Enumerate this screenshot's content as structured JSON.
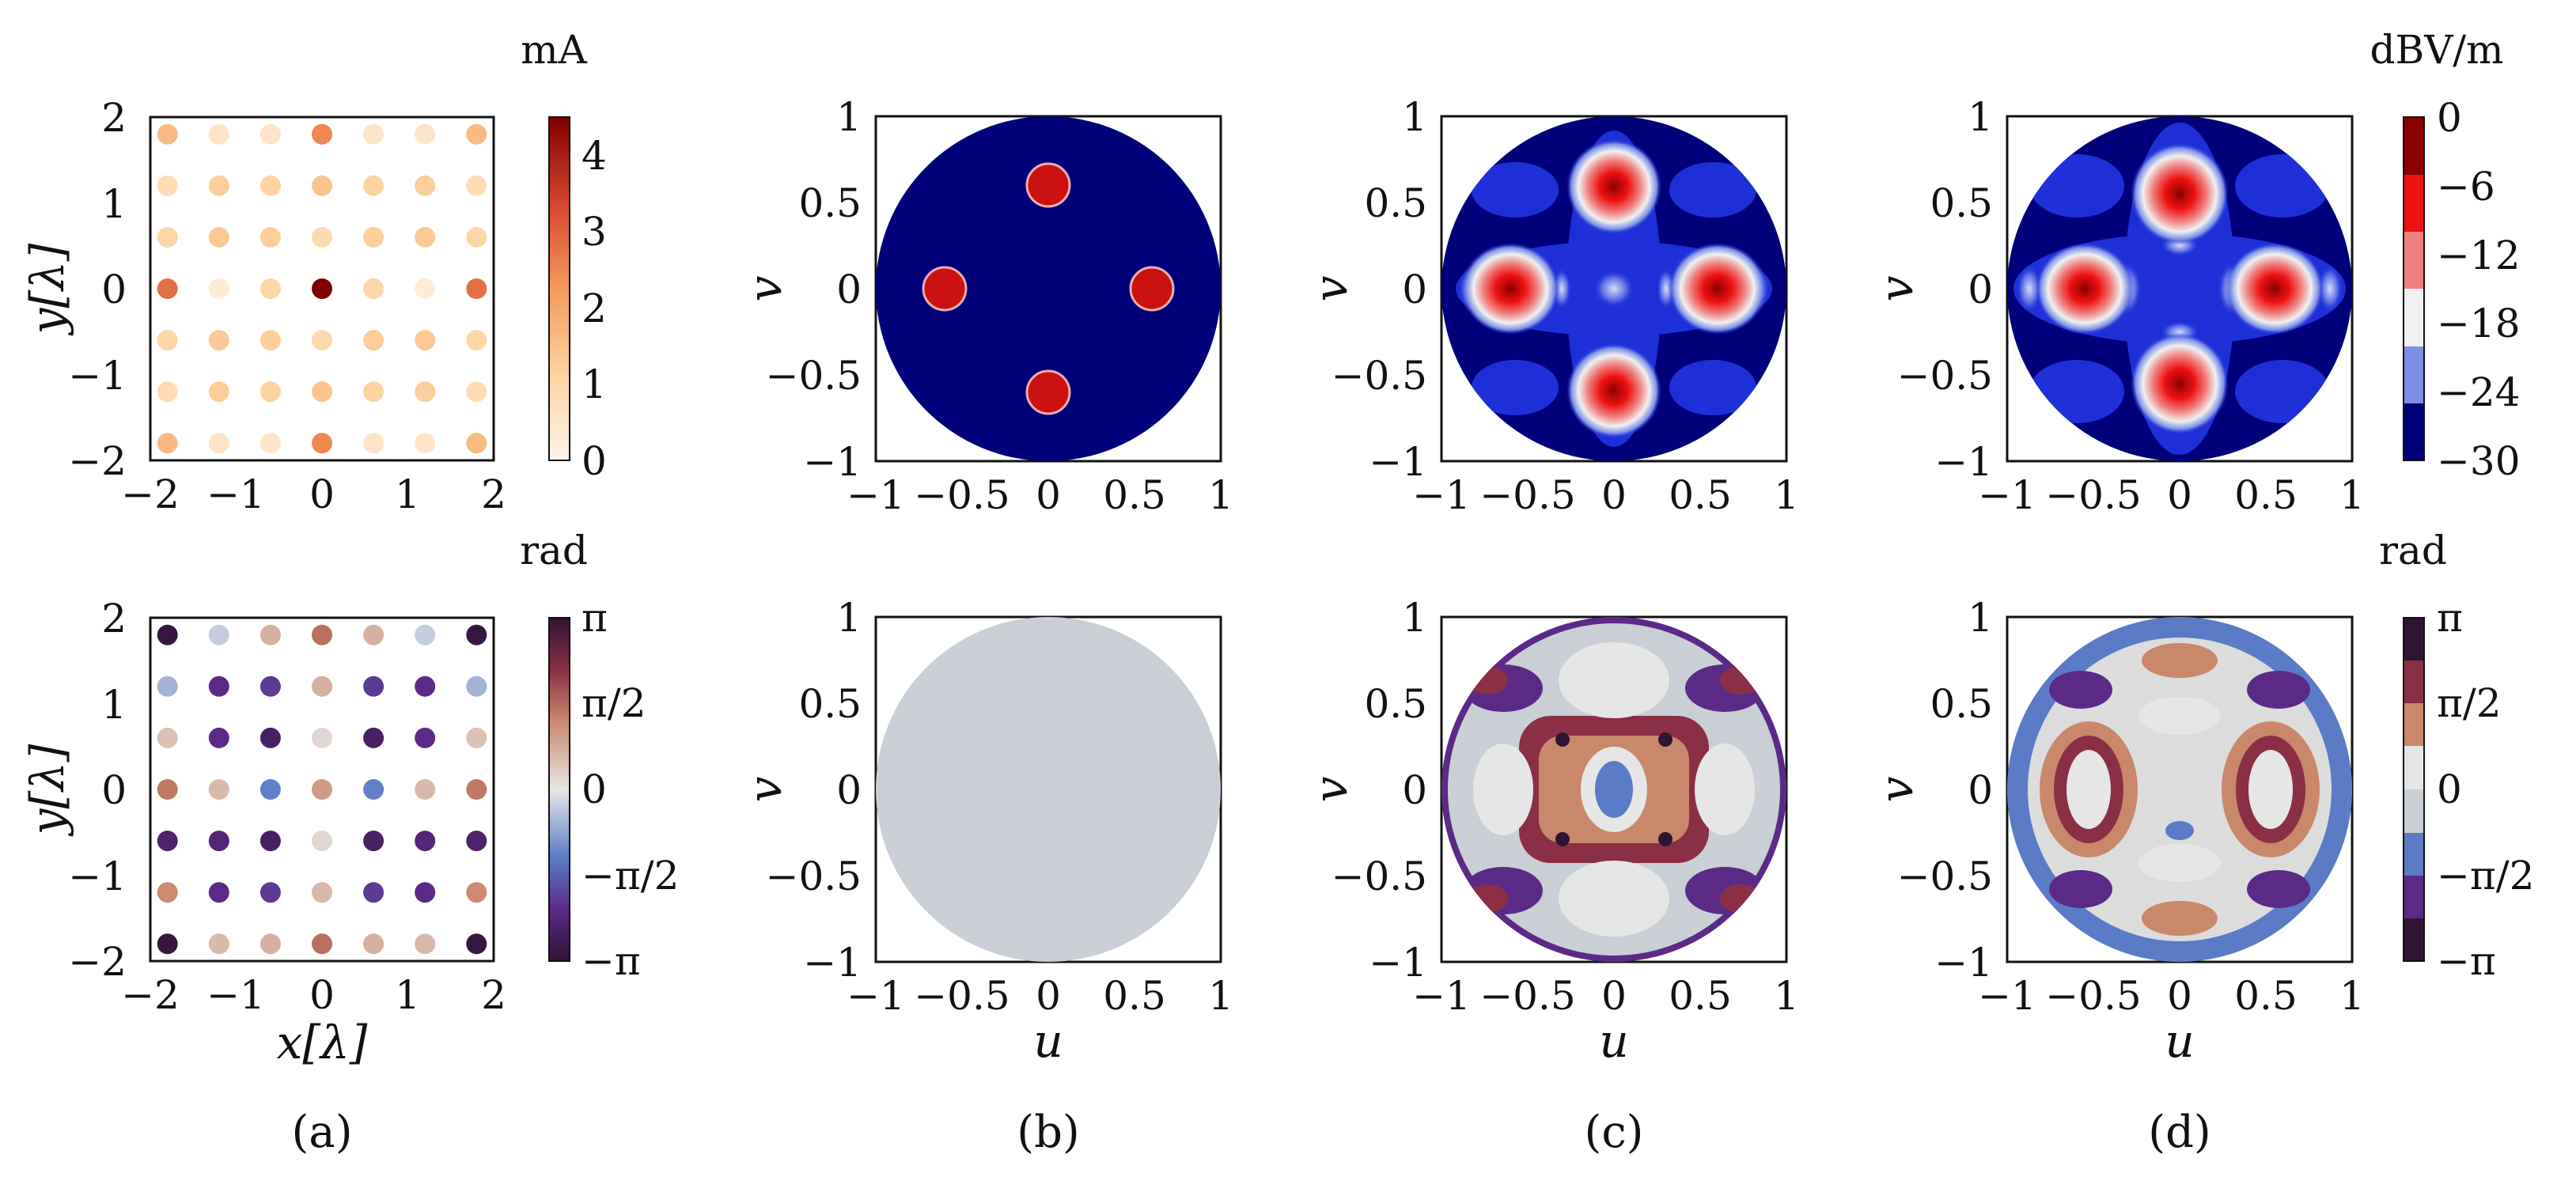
{
  "figure": {
    "panel_labels": [
      "(a)",
      "(b)",
      "(c)",
      "(d)"
    ],
    "units": {
      "current": "mA",
      "field": "dBV/m",
      "phase_a": "rad",
      "phase_d": "rad"
    },
    "axis_labels": {
      "x_lambda": "x[λ]",
      "y_lambda": "y[λ]",
      "u": "u",
      "v": "v"
    },
    "colorbars": {
      "current_ticks": [
        "0",
        "1",
        "2",
        "3",
        "4"
      ],
      "field_ticks": [
        "0",
        "−6",
        "−12",
        "−18",
        "−24",
        "−30"
      ],
      "phase_ticks": [
        "π",
        "π/2",
        "0",
        "−π/2",
        "−π"
      ]
    },
    "tick_labels": {
      "lambda_axis": [
        "−2",
        "−1",
        "0",
        "1",
        "2"
      ],
      "uv_axis": [
        "−1",
        "−0.5",
        "0",
        "0.5",
        "1"
      ]
    }
  },
  "chart_data": [
    {
      "id": "a-top",
      "type": "scatter",
      "description_unit": "mA",
      "xlabel": "",
      "ylabel": "y[λ]",
      "xlim": [
        -2,
        2
      ],
      "ylim": [
        -2,
        2
      ],
      "x_grid": [
        -1.8,
        -1.2,
        -0.6,
        0,
        0.6,
        1.2,
        1.8
      ],
      "y_grid": [
        1.8,
        1.2,
        0.6,
        0,
        -0.6,
        -1.2,
        -1.8
      ],
      "colorbar": {
        "label": "mA",
        "range": [
          0,
          4.5
        ],
        "ticks": [
          0,
          1,
          2,
          3,
          4
        ]
      },
      "values": [
        [
          1.6,
          0.5,
          0.5,
          2.5,
          0.5,
          0.5,
          1.6
        ],
        [
          0.8,
          1.2,
          1.1,
          1.4,
          1.1,
          1.2,
          0.8
        ],
        [
          1.0,
          1.3,
          1.2,
          0.9,
          1.2,
          1.3,
          1.0
        ],
        [
          2.8,
          0.3,
          1.0,
          4.5,
          1.0,
          0.3,
          2.8
        ],
        [
          1.0,
          1.3,
          1.2,
          0.9,
          1.2,
          1.3,
          1.0
        ],
        [
          0.8,
          1.2,
          1.1,
          1.4,
          1.1,
          1.2,
          0.8
        ],
        [
          1.6,
          0.5,
          0.5,
          2.5,
          0.5,
          0.5,
          1.6
        ]
      ]
    },
    {
      "id": "a-bottom",
      "type": "scatter",
      "xlabel": "x[λ]",
      "ylabel": "y[λ]",
      "xlim": [
        -2,
        2
      ],
      "ylim": [
        -2,
        2
      ],
      "x_grid": [
        -1.8,
        -1.2,
        -0.6,
        0,
        0.6,
        1.2,
        1.8
      ],
      "y_grid": [
        1.8,
        1.2,
        0.6,
        0,
        -0.6,
        -1.2,
        -1.8
      ],
      "colorbar": {
        "label": "rad",
        "range": [
          -3.1416,
          3.1416
        ],
        "ticks": [
          "−π",
          "−π/2",
          "0",
          "π/2",
          "π"
        ]
      },
      "values": [
        [
          -3.0,
          -0.3,
          0.7,
          1.5,
          0.7,
          -0.3,
          -3.0
        ],
        [
          -0.6,
          -2.2,
          -2.0,
          0.7,
          -2.0,
          -2.2,
          -0.6
        ],
        [
          0.5,
          -2.2,
          -2.6,
          0.2,
          -2.6,
          -2.2,
          0.5
        ],
        [
          1.4,
          0.6,
          -1.2,
          1.0,
          -1.2,
          0.6,
          1.4
        ],
        [
          -2.5,
          -2.4,
          -2.6,
          0.2,
          -2.6,
          -2.4,
          -2.5
        ],
        [
          1.2,
          -2.2,
          -2.0,
          0.6,
          -2.0,
          -2.2,
          1.2
        ],
        [
          -3.0,
          0.6,
          0.7,
          1.5,
          0.7,
          0.6,
          -3.0
        ]
      ]
    },
    {
      "id": "b-top",
      "type": "heatmap",
      "xlabel": "",
      "ylabel": "v",
      "xlim": [
        -1,
        1
      ],
      "ylim": [
        -1,
        1
      ],
      "colorbar": {
        "label": "dBV/m",
        "range": [
          -30,
          0
        ]
      },
      "background_db": -30,
      "beams": [
        {
          "u": 0,
          "v": 0.6,
          "db": 0
        },
        {
          "u": -0.6,
          "v": 0,
          "db": 0
        },
        {
          "u": 0.6,
          "v": 0,
          "db": 0
        },
        {
          "u": 0,
          "v": -0.6,
          "db": 0
        }
      ]
    },
    {
      "id": "b-bottom",
      "type": "heatmap",
      "xlabel": "u",
      "ylabel": "v",
      "xlim": [
        -1,
        1
      ],
      "ylim": [
        -1,
        1
      ],
      "colorbar": {
        "label": "rad",
        "range": [
          -3.1416,
          3.1416
        ]
      },
      "uniform_phase": 0
    },
    {
      "id": "c-top",
      "type": "heatmap",
      "xlabel": "",
      "ylabel": "v",
      "xlim": [
        -1,
        1
      ],
      "ylim": [
        -1,
        1
      ],
      "colorbar": {
        "label": "dBV/m",
        "range": [
          -30,
          0
        ]
      },
      "beams": [
        {
          "u": 0,
          "v": 0.6,
          "db": 0
        },
        {
          "u": -0.6,
          "v": 0,
          "db": 0
        },
        {
          "u": 0.6,
          "v": 0,
          "db": 0
        },
        {
          "u": 0,
          "v": -0.6,
          "db": 0
        }
      ],
      "sidelobes": [
        {
          "u": 0,
          "v": 0,
          "db": -22
        },
        {
          "u": -0.32,
          "v": 0,
          "db": -26
        },
        {
          "u": 0.32,
          "v": 0,
          "db": -26
        },
        {
          "u": 0,
          "v": 0.3,
          "db": -27
        },
        {
          "u": 0,
          "v": -0.3,
          "db": -27
        }
      ]
    },
    {
      "id": "c-bottom",
      "type": "heatmap",
      "xlabel": "u",
      "ylabel": "v",
      "xlim": [
        -1,
        1
      ],
      "ylim": [
        -1,
        1
      ],
      "colorbar": {
        "label": "rad",
        "range": [
          -3.1416,
          3.1416
        ]
      }
    },
    {
      "id": "d-top",
      "type": "heatmap",
      "xlabel": "",
      "ylabel": "v",
      "xlim": [
        -1,
        1
      ],
      "ylim": [
        -1,
        1
      ],
      "colorbar": {
        "label": "dBV/m",
        "range": [
          -30,
          0
        ],
        "ticks": [
          0,
          -6,
          -12,
          -18,
          -24,
          -30
        ]
      },
      "beams": [
        {
          "u": 0,
          "v": 0.55,
          "db": 0
        },
        {
          "u": -0.55,
          "v": 0,
          "db": 0
        },
        {
          "u": 0.55,
          "v": 0,
          "db": 0
        },
        {
          "u": 0,
          "v": -0.55,
          "db": 0
        }
      ],
      "sidelobes": [
        {
          "u": -0.3,
          "v": 0,
          "db": -20
        },
        {
          "u": 0.3,
          "v": 0,
          "db": -20
        },
        {
          "u": 0,
          "v": 0.25,
          "db": -22
        },
        {
          "u": 0,
          "v": -0.25,
          "db": -22
        }
      ]
    },
    {
      "id": "d-bottom",
      "type": "heatmap",
      "xlabel": "u",
      "ylabel": "v",
      "xlim": [
        -1,
        1
      ],
      "ylim": [
        -1,
        1
      ],
      "colorbar": {
        "label": "rad",
        "range": [
          -3.1416,
          3.1416
        ],
        "ticks": [
          "π",
          "π/2",
          "0",
          "−π/2",
          "−π"
        ]
      }
    }
  ]
}
